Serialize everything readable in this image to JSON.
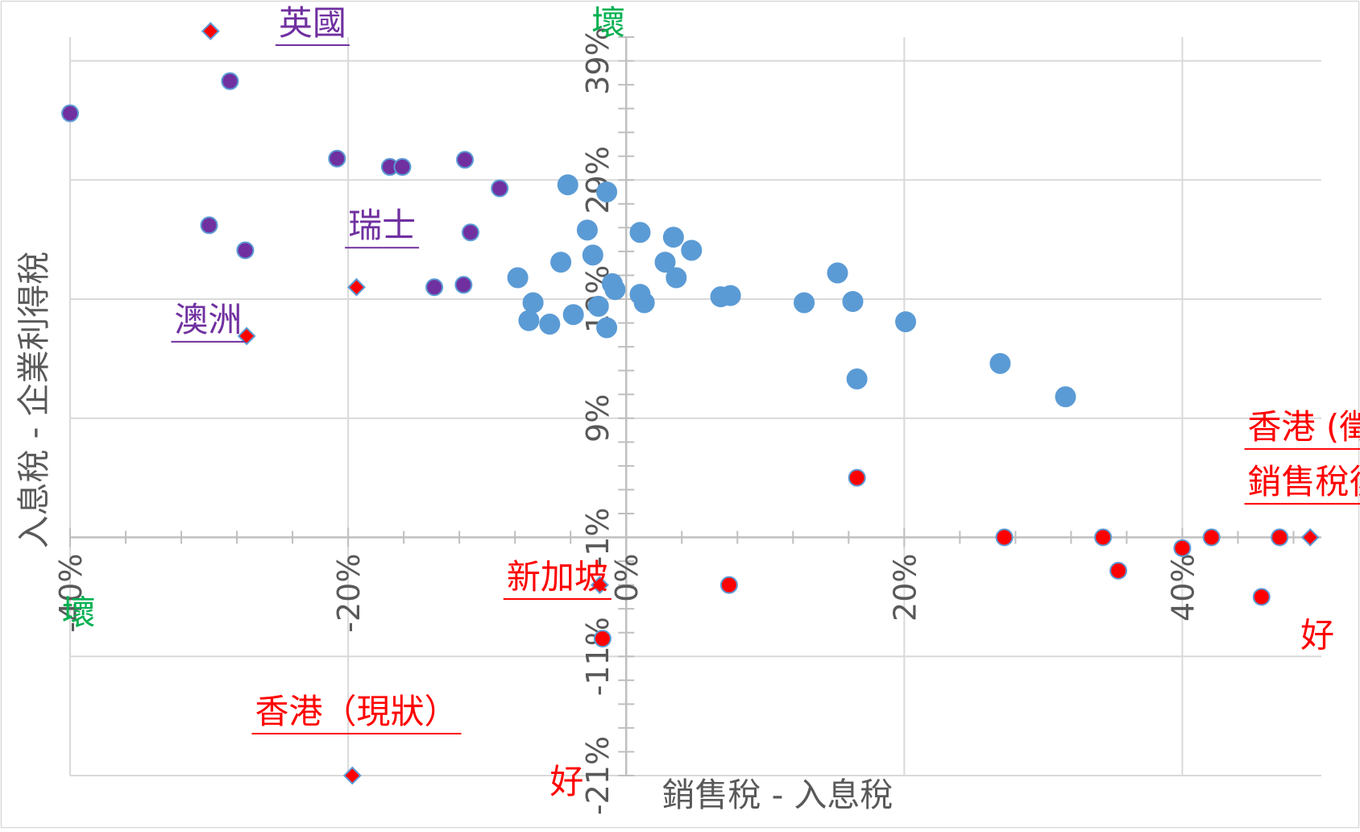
{
  "chart_data": {
    "type": "scatter",
    "title": "",
    "xlabel": "銷售稅 - 入息稅",
    "ylabel": "入息稅 - 企業利得稅",
    "xlim": [
      -40,
      50
    ],
    "ylim": [
      -21,
      41
    ],
    "x_ticks": [
      -40,
      -20,
      0,
      20,
      40
    ],
    "x_tick_labels": [
      "-40%",
      "-20%",
      "0%",
      "20%",
      "40%"
    ],
    "y_ticks": [
      -21,
      -11,
      -1,
      9,
      19,
      29,
      39
    ],
    "y_tick_labels": [
      "-21%",
      "-11%",
      "-1%",
      "9%",
      "19%",
      "29%",
      "39%"
    ],
    "grid": true,
    "legend": "none",
    "colors": {
      "axis": "#808080",
      "grid": "#d9d9d9",
      "blue_points": "#5b9bd5",
      "purple_points": "#7030a0",
      "red_points": "#ff0000",
      "marker_outline": "#5b9bd5",
      "purple_label": "#7030a0",
      "red_label": "#ff0000",
      "green_label": "#00b050",
      "axis_label": "#595959"
    },
    "series": [
      {
        "marker": "circle",
        "color": "#5b9bd5",
        "points": [
          [
            -4.2,
            28.6
          ],
          [
            -1.4,
            28.0
          ],
          [
            -2.8,
            24.8
          ],
          [
            -2.4,
            22.7
          ],
          [
            -1.0,
            20.3
          ],
          [
            -0.8,
            19.8
          ],
          [
            -2.0,
            18.4
          ],
          [
            -6.7,
            18.7
          ],
          [
            -5.5,
            16.9
          ],
          [
            -4.7,
            22.1
          ],
          [
            -7.0,
            17.2
          ],
          [
            -7.8,
            20.8
          ],
          [
            -3.8,
            17.7
          ],
          [
            -1.4,
            16.6
          ],
          [
            1.0,
            24.6
          ],
          [
            3.4,
            24.2
          ],
          [
            4.7,
            23.1
          ],
          [
            2.8,
            22.1
          ],
          [
            3.6,
            20.8
          ],
          [
            1.0,
            19.4
          ],
          [
            1.3,
            18.7
          ],
          [
            6.8,
            19.2
          ],
          [
            7.5,
            19.3
          ],
          [
            12.8,
            18.7
          ],
          [
            16.3,
            18.8
          ],
          [
            15.2,
            21.2
          ],
          [
            20.1,
            17.1
          ],
          [
            16.6,
            12.3
          ],
          [
            26.9,
            13.6
          ],
          [
            31.6,
            10.8
          ]
        ]
      },
      {
        "marker": "circle",
        "color": "#7030a0",
        "points": [
          [
            -40.0,
            34.6
          ],
          [
            -28.5,
            37.3
          ],
          [
            -30.0,
            25.2
          ],
          [
            -27.4,
            23.1
          ],
          [
            -20.8,
            30.8
          ],
          [
            -17.0,
            30.1
          ],
          [
            -16.1,
            30.1
          ],
          [
            -11.6,
            30.7
          ],
          [
            -9.1,
            28.3
          ],
          [
            -11.2,
            24.6
          ],
          [
            -11.7,
            20.2
          ],
          [
            -13.8,
            20.0
          ]
        ]
      },
      {
        "marker": "circle",
        "color": "#ff0000",
        "points": [
          [
            16.6,
            4.0
          ],
          [
            27.2,
            -1.0
          ],
          [
            34.3,
            -1.0
          ],
          [
            35.4,
            -3.8
          ],
          [
            40.0,
            -1.9
          ],
          [
            42.1,
            -1.0
          ],
          [
            47.0,
            -1.0
          ],
          [
            45.7,
            -6.0
          ],
          [
            7.4,
            -5.0
          ],
          [
            -1.7,
            -9.5
          ]
        ]
      },
      {
        "marker": "diamond",
        "color": "#ff0000",
        "points": [
          [
            -29.9,
            41.5
          ],
          [
            -19.4,
            20.0
          ],
          [
            -27.3,
            15.9
          ],
          [
            -1.9,
            -5.0
          ],
          [
            -19.7,
            -21.0
          ],
          [
            49.2,
            -1.0
          ]
        ]
      }
    ],
    "annotations": [
      {
        "text": "英國",
        "color": "#7030a0",
        "underline": true,
        "x": -25.0,
        "y": 41.2
      },
      {
        "text": "瑞士",
        "color": "#7030a0",
        "underline": true,
        "x": -20.0,
        "y": 24.2
      },
      {
        "text": "澳洲",
        "color": "#7030a0",
        "underline": true,
        "x": -32.5,
        "y": 16.3
      },
      {
        "text": "新加坡",
        "color": "#ff0000",
        "underline": true,
        "x": -8.6,
        "y": -5.3
      },
      {
        "text": "香港（現狀）",
        "color": "#ff0000",
        "underline": true,
        "x": -26.7,
        "y": -16.6
      },
      {
        "text": "香港 (徵收",
        "color": "#ff0000",
        "underline": true,
        "x": 44.7,
        "y": 7.3
      },
      {
        "text": "銷售稅後)",
        "color": "#ff0000",
        "underline": true,
        "x": 44.7,
        "y": 2.7
      },
      {
        "text": "壞",
        "color": "#00b050",
        "underline": false,
        "x": -40.6,
        "y": -8.3
      },
      {
        "text": "壞",
        "color": "#00b050",
        "underline": false,
        "x": -2.5,
        "y": 41.2
      },
      {
        "text": "好",
        "color": "#ff0000",
        "underline": false,
        "x": -5.5,
        "y": -22.5
      },
      {
        "text": "好",
        "color": "#ff0000",
        "underline": false,
        "x": 48.5,
        "y": -10.2
      }
    ]
  }
}
